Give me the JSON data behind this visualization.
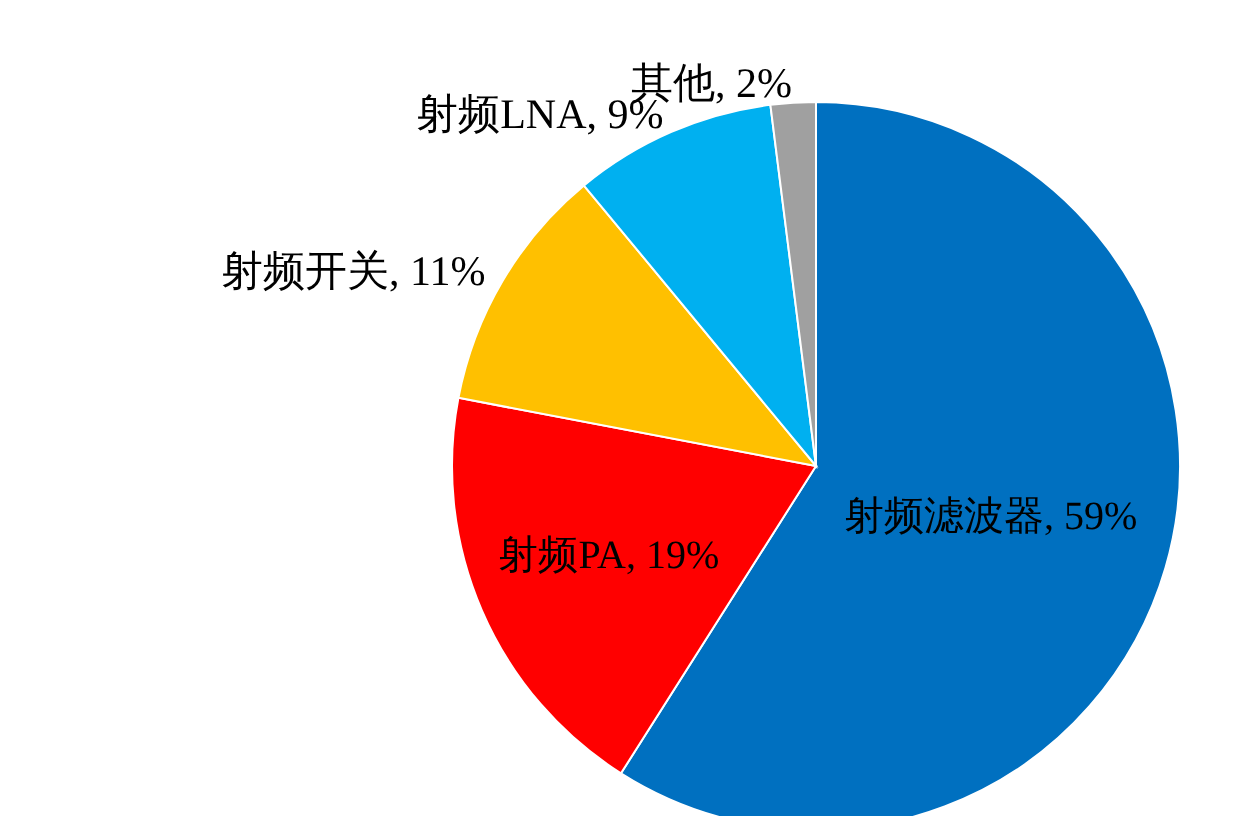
{
  "chart_data": {
    "type": "pie",
    "categories": [
      "射频滤波器",
      "射频PA",
      "射频开关",
      "射频LNA",
      "其他"
    ],
    "values": [
      59,
      19,
      11,
      9,
      2
    ],
    "value_labels": [
      "59%",
      "19%",
      "11%",
      "9%",
      "2%"
    ],
    "colors": [
      "#0070c0",
      "#ff0000",
      "#ffc000",
      "#00b0f0",
      "#a0a0a0"
    ],
    "legend": false
  }
}
